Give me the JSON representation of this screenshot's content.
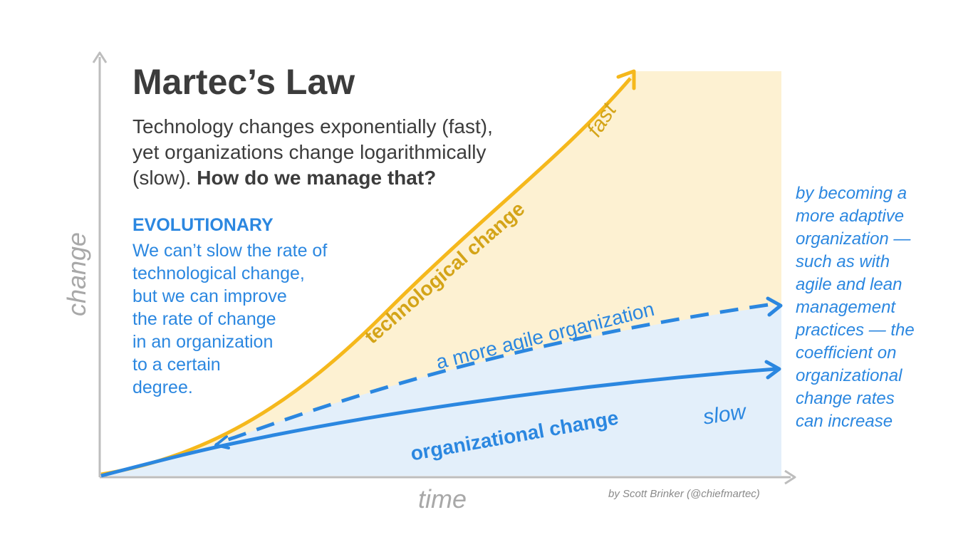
{
  "title": "Martec’s Law",
  "subtitle": {
    "line1": "Technology changes exponentially (fast),",
    "line2": "yet organizations change logarithmically",
    "line3_regular": "(slow).",
    "line3_bold": "How do we manage that?"
  },
  "evolutionary": {
    "heading": "EVOLUTIONARY",
    "lines": [
      "We can’t slow the rate of",
      "technological change,",
      "but we can improve",
      "the rate of change",
      "in an organization",
      "to a certain",
      "degree."
    ]
  },
  "right_note": {
    "lines": [
      "by becoming a",
      "more adaptive",
      "organization —",
      "such as with",
      "agile and lean",
      "management",
      "practices — the",
      "coefficient on",
      "organizational",
      "change rates",
      "can increase"
    ]
  },
  "axes": {
    "x_label": "time",
    "y_label": "change"
  },
  "curve_labels": {
    "technological": "technological change",
    "fast": "fast",
    "agile": "a more agile organization",
    "organizational": "organizational change",
    "slow": "slow"
  },
  "credit": "by Scott Brinker (@chiefmartec)",
  "colors": {
    "tech": "#f5b81c",
    "tech_fill": "#fdf1d2",
    "org": "#2b87e0",
    "org_fill": "#e3effa",
    "axis": "#bdbdbd",
    "text": "#3c3c3c"
  }
}
